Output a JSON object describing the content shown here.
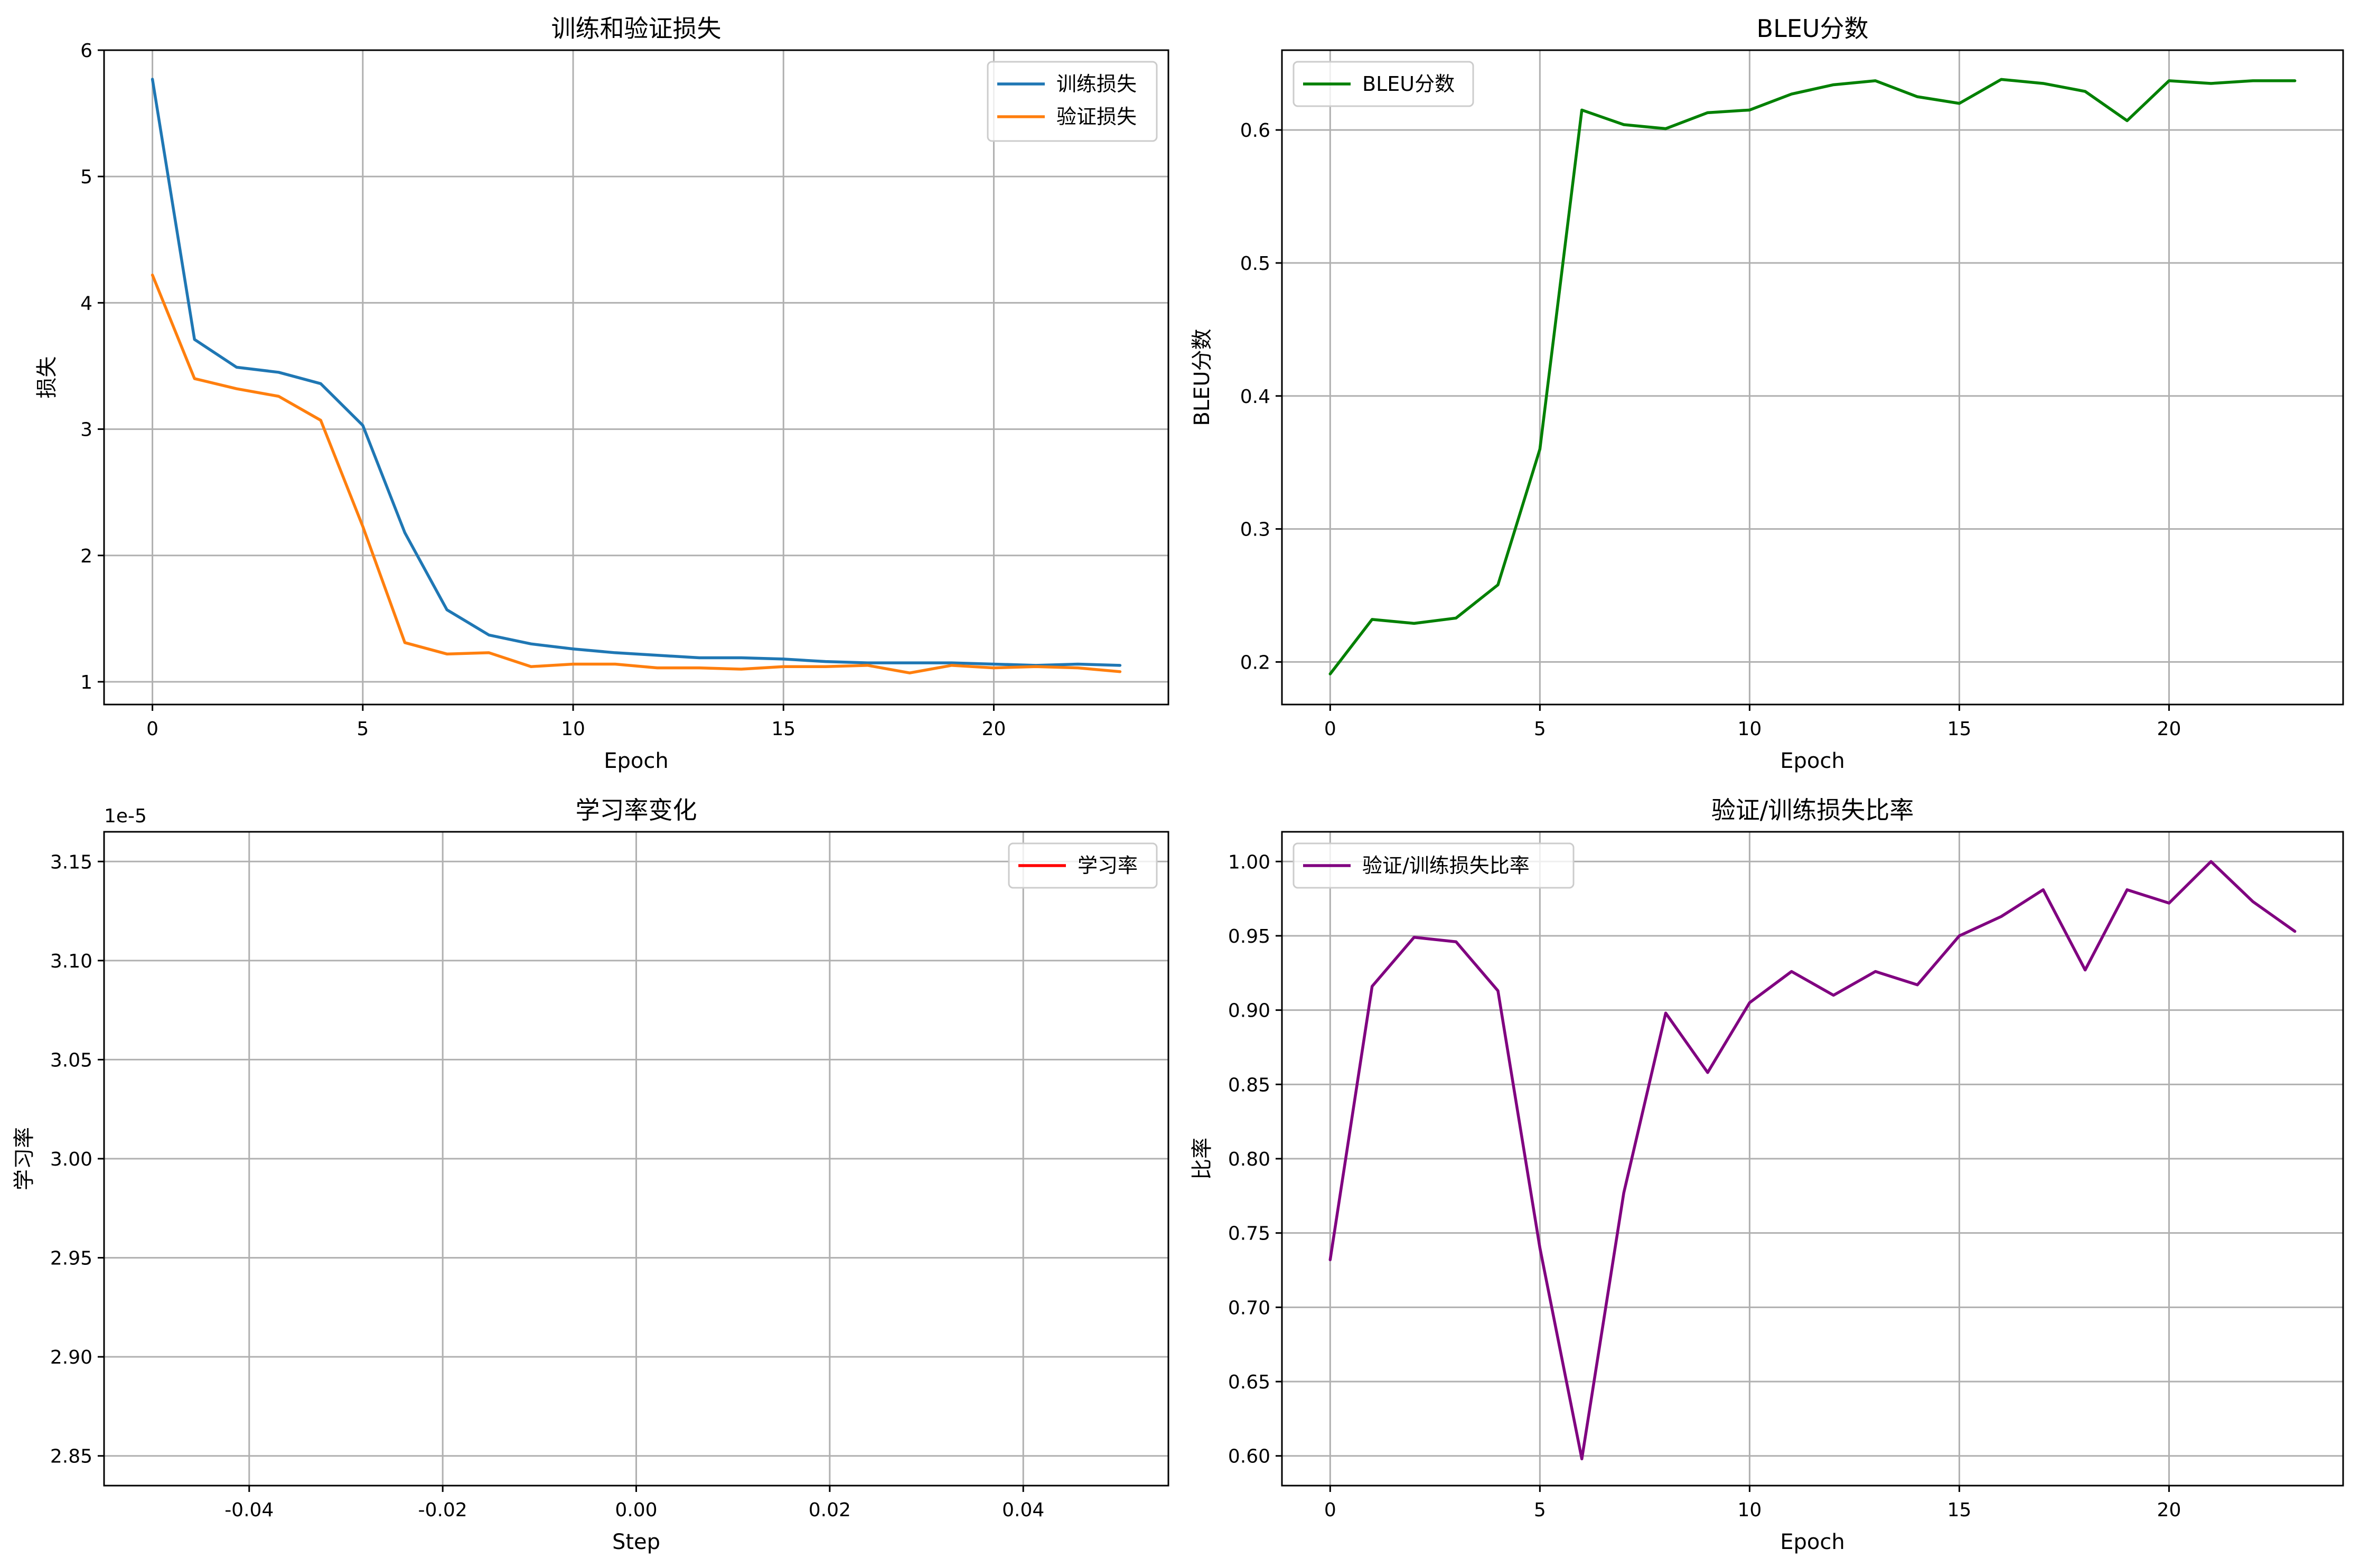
{
  "chart_data": [
    {
      "type": "line",
      "title": "训练和验证损失",
      "xlabel": "Epoch",
      "ylabel": "损失",
      "xlim": [
        -1.15,
        24.15
      ],
      "ylim": [
        0.82,
        6.0
      ],
      "xticks": [
        0,
        5,
        10,
        15,
        20
      ],
      "xtick_labels": [
        "0",
        "5",
        "10",
        "15",
        "20"
      ],
      "yticks": [
        1,
        2,
        3,
        4,
        5,
        6
      ],
      "ytick_labels": [
        "1",
        "2",
        "3",
        "4",
        "5",
        "6"
      ],
      "grid": true,
      "legend_position": "top-right",
      "x": [
        0,
        1,
        2,
        3,
        4,
        5,
        6,
        7,
        8,
        9,
        10,
        11,
        12,
        13,
        14,
        15,
        16,
        17,
        18,
        19,
        20,
        21,
        22,
        23
      ],
      "series": [
        {
          "name": "训练损失",
          "color": "#1f77b4",
          "values": [
            5.77,
            3.71,
            3.49,
            3.45,
            3.36,
            3.03,
            2.18,
            1.57,
            1.37,
            1.3,
            1.26,
            1.23,
            1.21,
            1.19,
            1.19,
            1.18,
            1.16,
            1.15,
            1.15,
            1.15,
            1.14,
            1.13,
            1.14,
            1.13
          ]
        },
        {
          "name": "验证损失",
          "color": "#ff7f0e",
          "values": [
            4.22,
            3.4,
            3.32,
            3.26,
            3.07,
            2.23,
            1.31,
            1.22,
            1.23,
            1.12,
            1.14,
            1.14,
            1.11,
            1.11,
            1.1,
            1.12,
            1.12,
            1.13,
            1.07,
            1.13,
            1.11,
            1.12,
            1.11,
            1.08
          ]
        }
      ]
    },
    {
      "type": "line",
      "title": "BLEU分数",
      "xlabel": "Epoch",
      "ylabel": "BLEU分数",
      "xlim": [
        -1.15,
        24.15
      ],
      "ylim": [
        0.168,
        0.66
      ],
      "xticks": [
        0,
        5,
        10,
        15,
        20
      ],
      "xtick_labels": [
        "0",
        "5",
        "10",
        "15",
        "20"
      ],
      "yticks": [
        0.2,
        0.3,
        0.4,
        0.5,
        0.6
      ],
      "ytick_labels": [
        "0.2",
        "0.3",
        "0.4",
        "0.5",
        "0.6"
      ],
      "grid": true,
      "legend_position": "top-left",
      "x": [
        0,
        1,
        2,
        3,
        4,
        5,
        6,
        7,
        8,
        9,
        10,
        11,
        12,
        13,
        14,
        15,
        16,
        17,
        18,
        19,
        20,
        21,
        22,
        23
      ],
      "series": [
        {
          "name": "BLEU分数",
          "color": "#008000",
          "values": [
            0.191,
            0.232,
            0.229,
            0.233,
            0.258,
            0.36,
            0.615,
            0.604,
            0.601,
            0.613,
            0.615,
            0.627,
            0.634,
            0.637,
            0.625,
            0.62,
            0.638,
            0.635,
            0.629,
            0.607,
            0.637,
            0.635,
            0.637,
            0.637
          ]
        }
      ]
    },
    {
      "type": "line",
      "title": "学习率变化",
      "xlabel": "Step",
      "ylabel": "学习率",
      "offset_label": "1e-5",
      "xlim": [
        -0.055,
        0.055
      ],
      "ylim": [
        2.835,
        3.165
      ],
      "xticks": [
        -0.04,
        -0.02,
        0.0,
        0.02,
        0.04
      ],
      "xtick_labels": [
        "-0.04",
        "-0.02",
        "0.00",
        "0.02",
        "0.04"
      ],
      "yticks": [
        2.85,
        2.9,
        2.95,
        3.0,
        3.05,
        3.1,
        3.15
      ],
      "ytick_labels": [
        "2.85",
        "2.90",
        "2.95",
        "3.00",
        "3.05",
        "3.10",
        "3.15"
      ],
      "grid": true,
      "legend_position": "top-right",
      "x": [],
      "series": [
        {
          "name": "学习率",
          "color": "#ff0000",
          "values": []
        }
      ]
    },
    {
      "type": "line",
      "title": "验证/训练损失比率",
      "xlabel": "Epoch",
      "ylabel": "比率",
      "xlim": [
        -1.15,
        24.15
      ],
      "ylim": [
        0.58,
        1.02
      ],
      "xticks": [
        0,
        5,
        10,
        15,
        20
      ],
      "xtick_labels": [
        "0",
        "5",
        "10",
        "15",
        "20"
      ],
      "yticks": [
        0.6,
        0.65,
        0.7,
        0.75,
        0.8,
        0.85,
        0.9,
        0.95,
        1.0
      ],
      "ytick_labels": [
        "0.60",
        "0.65",
        "0.70",
        "0.75",
        "0.80",
        "0.85",
        "0.90",
        "0.95",
        "1.00"
      ],
      "grid": true,
      "legend_position": "top-left",
      "x": [
        0,
        1,
        2,
        3,
        4,
        5,
        6,
        7,
        8,
        9,
        10,
        11,
        12,
        13,
        14,
        15,
        16,
        17,
        18,
        19,
        20,
        21,
        22,
        23
      ],
      "series": [
        {
          "name": "验证/训练损失比率",
          "color": "#800080",
          "values": [
            0.732,
            0.916,
            0.949,
            0.946,
            0.913,
            0.74,
            0.598,
            0.777,
            0.898,
            0.858,
            0.905,
            0.926,
            0.91,
            0.926,
            0.917,
            0.95,
            0.963,
            0.981,
            0.927,
            0.981,
            0.972,
            1.0,
            0.973,
            0.953
          ]
        }
      ]
    }
  ]
}
